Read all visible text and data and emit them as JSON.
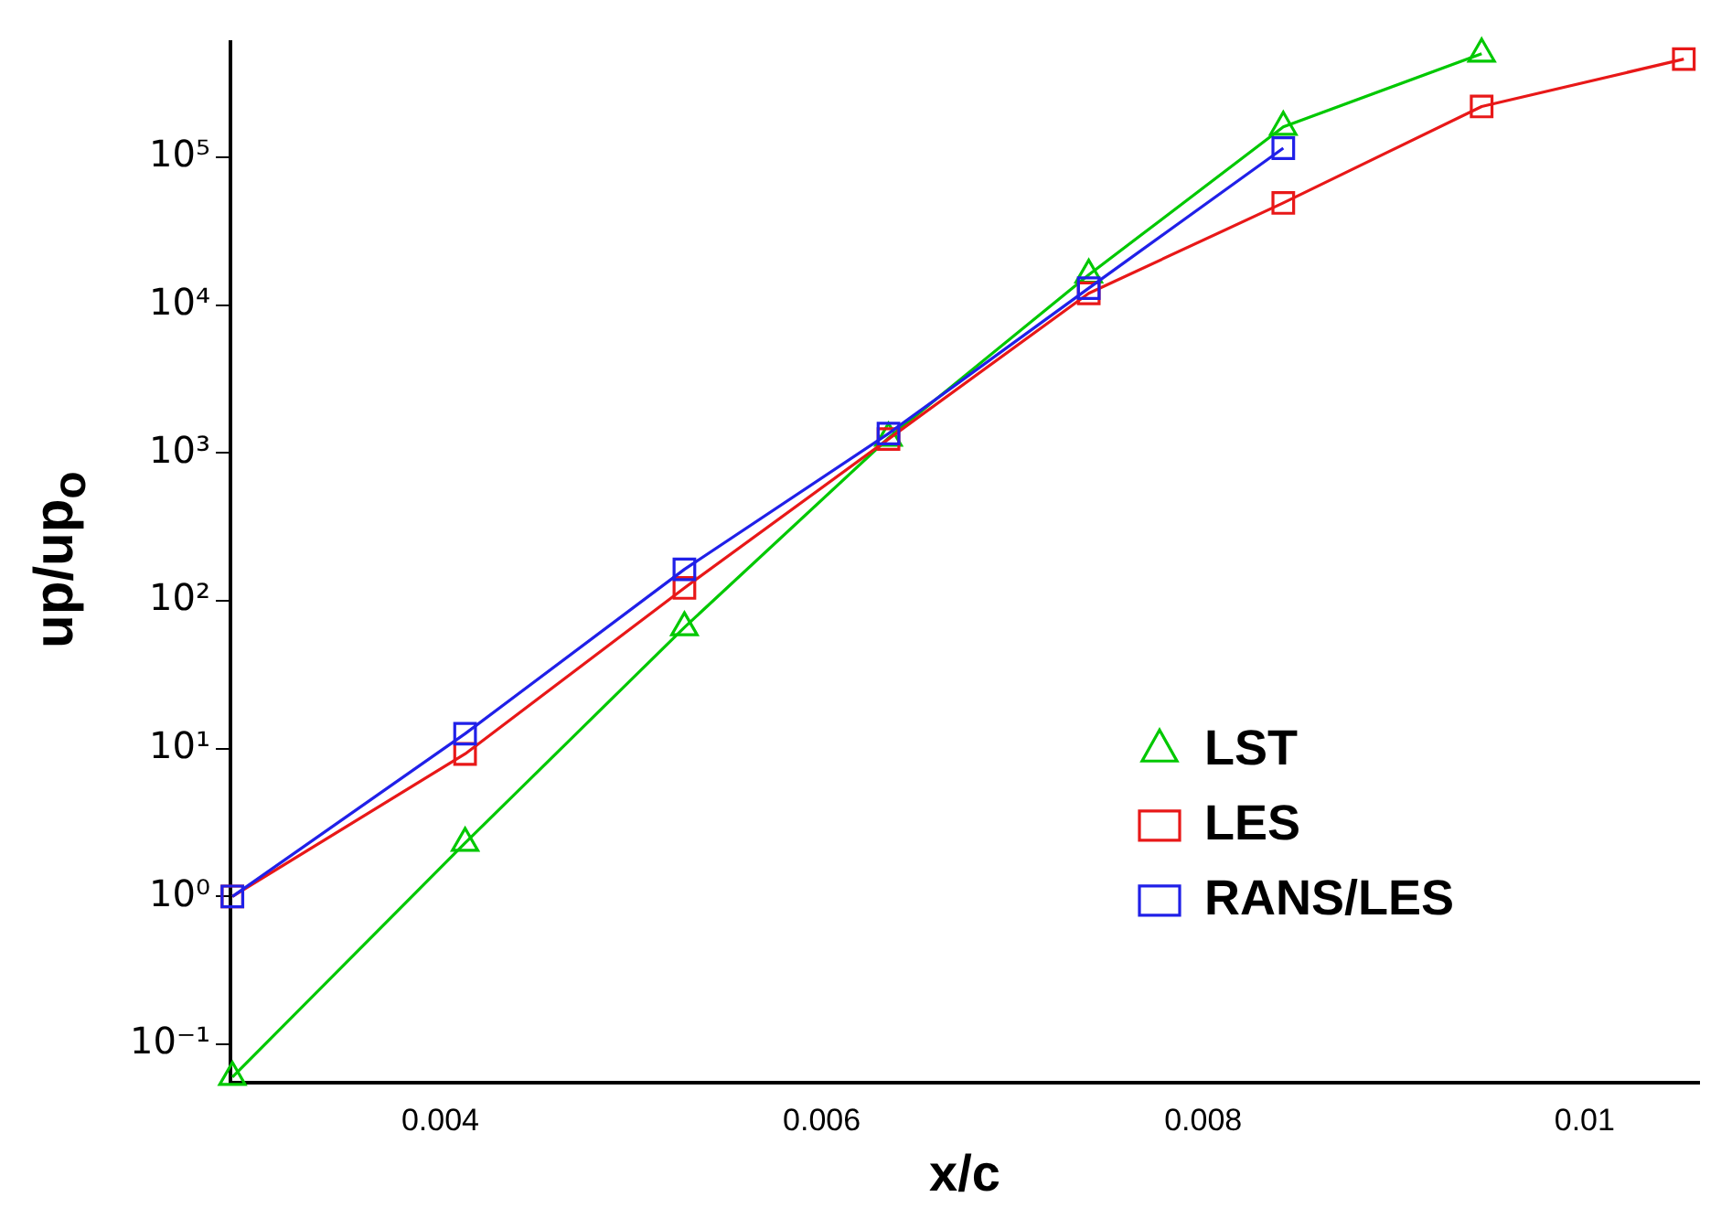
{
  "chart_data": {
    "type": "line",
    "xlabel": "x/c",
    "ylabel": "up/up$_{o}$",
    "log": "y",
    "grid": false,
    "legend": "right",
    "marker": "square",
    "line_style": "solid",
    "xlim": [
      0.0029,
      0.0106
    ],
    "xticks": [
      0.004,
      0.006,
      0.008,
      0.01
    ],
    "ylim": [
      0.055,
      600000
    ],
    "yticks": [
      {
        "value": 0.1,
        "label": "10⁻¹"
      },
      {
        "value": 1,
        "label": "10⁰"
      },
      {
        "value": 10,
        "label": "10¹"
      },
      {
        "value": 100,
        "label": "10²"
      },
      {
        "value": 1000,
        "label": "10³"
      },
      {
        "value": 10000,
        "label": "10⁴"
      },
      {
        "value": 100000,
        "label": "10⁵"
      }
    ],
    "series": [
      {
        "name": "LST",
        "color": "#00c800",
        "marker": "triangle",
        "x": [
          0.00291,
          0.00413,
          0.00528,
          0.00635,
          0.0074,
          0.00842,
          0.00946
        ],
        "values": [
          0.06,
          2.3,
          66,
          1260,
          16000,
          160000,
          500000
        ]
      },
      {
        "name": "LES",
        "color": "#e81818",
        "x": [
          0.00291,
          0.00413,
          0.00528,
          0.00635,
          0.0074,
          0.00842,
          0.00946,
          0.01052
        ],
        "values": [
          1,
          9.2,
          122,
          1240,
          12000,
          49000,
          220000,
          460000
        ]
      },
      {
        "name": "RANS/LES",
        "color": "#2020e8",
        "x": [
          0.00291,
          0.00413,
          0.00528,
          0.00635,
          0.0074,
          0.00842
        ],
        "values": [
          1,
          12.6,
          163,
          1350,
          13000,
          115000
        ]
      }
    ]
  }
}
